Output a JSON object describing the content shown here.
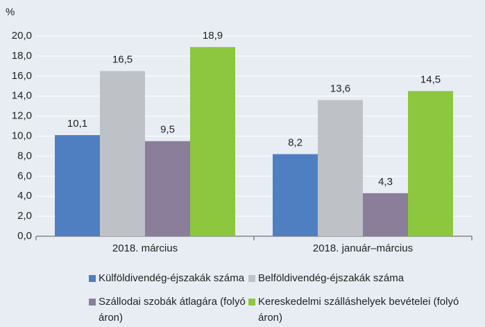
{
  "chart_data": {
    "type": "bar",
    "y_label": "%",
    "categories": [
      "2018. március",
      "2018. január–március"
    ],
    "series": [
      {
        "name": "Külföldivendég-éjszakák száma",
        "color": "#4f7fc0",
        "values": [
          10.1,
          8.2
        ],
        "value_labels": [
          "10,1",
          "8,2"
        ]
      },
      {
        "name": "Belföldivendég-éjszakák száma",
        "color": "#bec2c6",
        "values": [
          16.5,
          13.6
        ],
        "value_labels": [
          "16,5",
          "13,6"
        ]
      },
      {
        "name": "Szállodai szobák átlagára (folyó áron)",
        "color": "#8a7e9b",
        "values": [
          9.5,
          4.3
        ],
        "value_labels": [
          "9,5",
          "4,3"
        ]
      },
      {
        "name": "Kereskedelmi szálláshelyek bevételei (folyó áron)",
        "color": "#8dc63f",
        "values": [
          18.9,
          14.5
        ],
        "value_labels": [
          "18,9",
          "14,5"
        ]
      }
    ],
    "ylim": [
      0,
      20
    ],
    "yticks": [
      {
        "value": 0,
        "label": "0,0"
      },
      {
        "value": 2,
        "label": "2,0"
      },
      {
        "value": 4,
        "label": "4,0"
      },
      {
        "value": 6,
        "label": "6,0"
      },
      {
        "value": 8,
        "label": "8,0"
      },
      {
        "value": 10,
        "label": "10,0"
      },
      {
        "value": 12,
        "label": "12,0"
      },
      {
        "value": 14,
        "label": "14,0"
      },
      {
        "value": 16,
        "label": "16,0"
      },
      {
        "value": 18,
        "label": "18,0"
      },
      {
        "value": 20,
        "label": "20,0"
      }
    ],
    "grid": true
  }
}
